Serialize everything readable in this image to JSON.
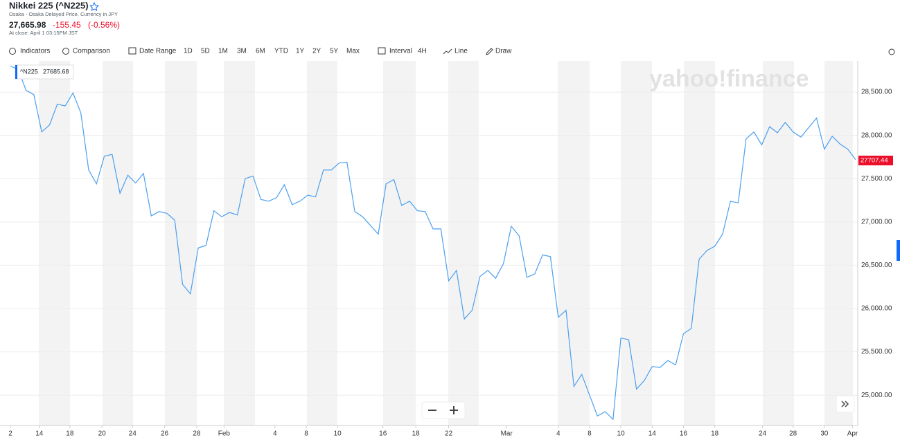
{
  "header": {
    "title": "Nikkei 225 (^N225)",
    "exchange_note": "Osaka - Osaka Delayed Price. Currency in JPY",
    "price": "27,665.98",
    "change": "-155.45",
    "change_pct": "(-0.56%)",
    "close_time": "At close: April 1 03:15PM JST"
  },
  "toolbar": {
    "items": [
      "Indicators",
      "Comparison",
      "Date Range",
      "1D",
      "5D",
      "1M",
      "3M",
      "6M",
      "YTD",
      "1Y",
      "2Y",
      "5Y",
      "Max",
      "Interval",
      "4H",
      "Line",
      "Draw"
    ]
  },
  "watermark": "yahoo!finance",
  "tooltip": {
    "label": "^N225",
    "value": "27685.68"
  },
  "current_price_label": "27707.44",
  "chart_data": {
    "type": "line",
    "series": [
      {
        "name": "^N225",
        "color": "#4a9ff0",
        "values": [
          28800,
          28760,
          28520,
          28470,
          28040,
          28120,
          28360,
          28340,
          28490,
          28260,
          27600,
          27440,
          27760,
          27780,
          27330,
          27540,
          27450,
          27560,
          27070,
          27120,
          27100,
          27020,
          26280,
          26170,
          26700,
          26730,
          27130,
          27060,
          27110,
          27080,
          27500,
          27530,
          27260,
          27240,
          27280,
          27430,
          27200,
          27240,
          27310,
          27290,
          27600,
          27600,
          27680,
          27690,
          27120,
          27060,
          26960,
          26860,
          27440,
          27490,
          27190,
          27240,
          27130,
          27120,
          26920,
          26920,
          26320,
          26440,
          25880,
          25980,
          26370,
          26440,
          26350,
          26520,
          26950,
          26840,
          26360,
          26400,
          26620,
          26600,
          25900,
          25980,
          25100,
          25240,
          25000,
          24760,
          24810,
          24720,
          25660,
          25640,
          25070,
          25170,
          25330,
          25320,
          25400,
          25350,
          25710,
          25770,
          26570,
          26670,
          26720,
          26860,
          27240,
          27220,
          27960,
          28040,
          27890,
          28100,
          28030,
          28150,
          28040,
          27980,
          28090,
          28200,
          27840,
          27990,
          27900,
          27840,
          27720
        ]
      }
    ],
    "xlim": [
      0,
      108
    ],
    "xticks": [
      {
        "value": 0,
        "label": "2"
      },
      {
        "value": 3.7,
        "label": "14"
      },
      {
        "value": 7.6,
        "label": "18"
      },
      {
        "value": 11.7,
        "label": "20"
      },
      {
        "value": 15.6,
        "label": "24"
      },
      {
        "value": 19.7,
        "label": "26"
      },
      {
        "value": 23.8,
        "label": "28"
      },
      {
        "value": 27.3,
        "label": "Feb"
      },
      {
        "value": 33.8,
        "label": "4"
      },
      {
        "value": 37.8,
        "label": "8"
      },
      {
        "value": 41.8,
        "label": "10"
      },
      {
        "value": 47.6,
        "label": "16"
      },
      {
        "value": 51.8,
        "label": "18"
      },
      {
        "value": 56,
        "label": "22"
      },
      {
        "value": 63.4,
        "label": "Mar"
      },
      {
        "value": 70,
        "label": "4"
      },
      {
        "value": 74,
        "label": "8"
      },
      {
        "value": 78,
        "label": "10"
      },
      {
        "value": 82,
        "label": "14"
      },
      {
        "value": 86,
        "label": "16"
      },
      {
        "value": 90,
        "label": "18"
      },
      {
        "value": 96.1,
        "label": "24"
      },
      {
        "value": 100,
        "label": "28"
      },
      {
        "value": 104,
        "label": "30"
      },
      {
        "value": 107.6,
        "label": "Apr"
      }
    ],
    "ylim": [
      24650,
      28860
    ],
    "yticks": [
      {
        "value": 25000,
        "label": "25,000.00"
      },
      {
        "value": 25500,
        "label": "25,500.00"
      },
      {
        "value": 26000,
        "label": "26,000.00"
      },
      {
        "value": 26500,
        "label": "26,500.00"
      },
      {
        "value": 27000,
        "label": "27,000.00"
      },
      {
        "value": 27500,
        "label": "27,500.00"
      },
      {
        "value": 28000,
        "label": "28,000.00"
      },
      {
        "value": 28500,
        "label": "28,500.00"
      }
    ],
    "grid": true
  }
}
